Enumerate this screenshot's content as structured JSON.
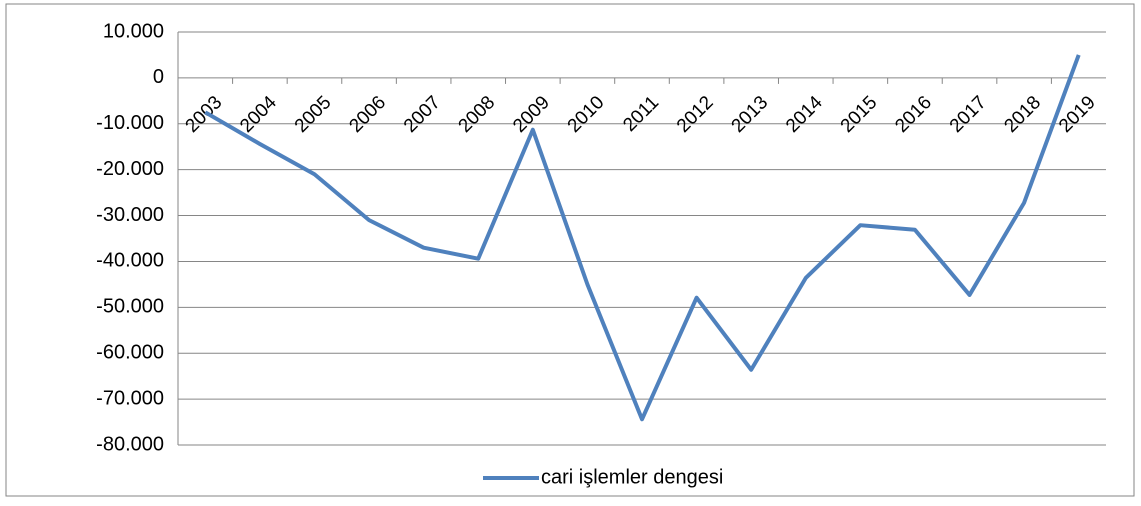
{
  "chart_data": {
    "type": "line",
    "categories": [
      "2003",
      "2004",
      "2005",
      "2006",
      "2007",
      "2008",
      "2009",
      "2010",
      "2011",
      "2012",
      "2013",
      "2014",
      "2015",
      "2016",
      "2017",
      "2018",
      "2019"
    ],
    "series": [
      {
        "name": "cari işlemler dengesi",
        "color": "#4f81bd",
        "values": [
          -7500,
          -14400,
          -21000,
          -31000,
          -37000,
          -39400,
          -11300,
          -45000,
          -74400,
          -47900,
          -63600,
          -43600,
          -32100,
          -33100,
          -47300,
          -27200,
          5000
        ]
      }
    ],
    "ylim": [
      -80000,
      10000
    ],
    "yticks": [
      {
        "value": -80000,
        "label": "-80.000"
      },
      {
        "value": -70000,
        "label": "-70.000"
      },
      {
        "value": -60000,
        "label": "-60.000"
      },
      {
        "value": -50000,
        "label": "-50.000"
      },
      {
        "value": -40000,
        "label": "-40.000"
      },
      {
        "value": -30000,
        "label": "-30.000"
      },
      {
        "value": -20000,
        "label": "-20.000"
      },
      {
        "value": -10000,
        "label": "-10.000"
      },
      {
        "value": 0,
        "label": "0"
      },
      {
        "value": 10000,
        "label": "10.000"
      }
    ],
    "grid": true,
    "legend": "bottom"
  }
}
